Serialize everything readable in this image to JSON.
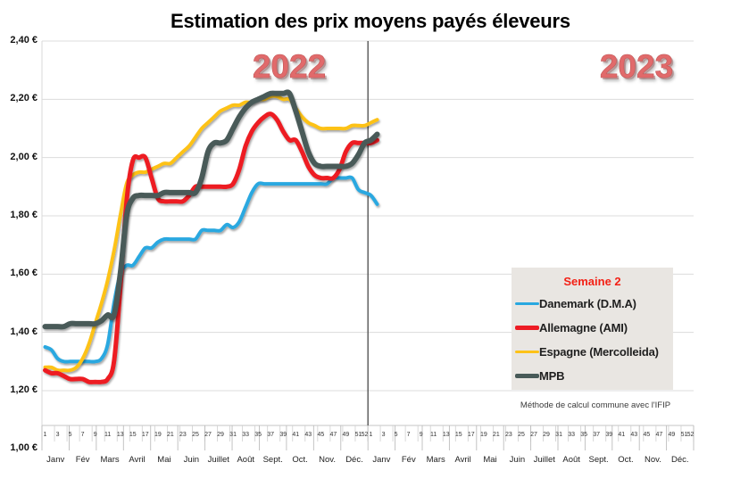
{
  "title": "Estimation des prix moyens payés éleveurs",
  "year_labels": [
    "2022",
    "2023"
  ],
  "footnote": "Méthode de calcul commune avec l'IFIP",
  "legend": {
    "title": "Semaine 2",
    "items": [
      {
        "label": "Danemark (D.M.A)",
        "color": "#29a8e0"
      },
      {
        "label": "Allemagne (AMI)",
        "color": "#ed1c24"
      },
      {
        "label": "Espagne (Mercolleida)",
        "color": "#fdc218"
      },
      {
        "label": "MPB",
        "color": "#485a58"
      }
    ]
  },
  "chart_data": {
    "type": "line",
    "title": "Estimation des prix moyens payés éleveurs",
    "x_axis": {
      "years": [
        "2022",
        "2023"
      ],
      "plotted_range": "2022 semaines 1-52 puis 2023 semaines 1-2",
      "week_tick_labels": [
        "1",
        "3",
        "5",
        "7",
        "9",
        "11",
        "13",
        "15",
        "17",
        "19",
        "21",
        "23",
        "25",
        "27",
        "29",
        "31",
        "33",
        "35",
        "37",
        "39",
        "41",
        "43",
        "45",
        "47",
        "49",
        "51",
        "52"
      ],
      "month_labels": [
        "Janv",
        "Fév",
        "Mars",
        "Avril",
        "Mai",
        "Juin",
        "Juillet",
        "Août",
        "Sept.",
        "Oct.",
        "Nov.",
        "Déc."
      ]
    },
    "y_axis": {
      "unit": "EUR",
      "min": 1.0,
      "max": 2.4,
      "tick_labels": [
        "2,40 €",
        "2,20 €",
        "2,00 €",
        "1,80 €",
        "1,60 €",
        "1,40 €",
        "1,20 €",
        "1,00 €"
      ]
    },
    "divider_between_years": true,
    "highlighted_week": "Semaine 2",
    "series": [
      {
        "name": "Danemark (D.M.A)",
        "color": "#29a8e0",
        "values": [
          1.35,
          1.34,
          1.31,
          1.3,
          1.3,
          1.3,
          1.3,
          1.3,
          1.3,
          1.31,
          1.36,
          1.5,
          1.6,
          1.63,
          1.63,
          1.66,
          1.69,
          1.69,
          1.71,
          1.72,
          1.72,
          1.72,
          1.72,
          1.72,
          1.72,
          1.75,
          1.75,
          1.75,
          1.75,
          1.77,
          1.76,
          1.78,
          1.83,
          1.88,
          1.91,
          1.91,
          1.91,
          1.91,
          1.91,
          1.91,
          1.91,
          1.91,
          1.91,
          1.91,
          1.91,
          1.91,
          1.93,
          1.93,
          1.93,
          1.93,
          1.89,
          1.88,
          1.87,
          1.84
        ]
      },
      {
        "name": "Allemagne (AMI)",
        "color": "#ed1c24",
        "values": [
          1.27,
          1.26,
          1.26,
          1.25,
          1.24,
          1.24,
          1.24,
          1.23,
          1.23,
          1.23,
          1.24,
          1.3,
          1.55,
          1.85,
          1.99,
          2.0,
          2.0,
          1.93,
          1.86,
          1.85,
          1.85,
          1.85,
          1.85,
          1.87,
          1.9,
          1.9,
          1.9,
          1.9,
          1.9,
          1.9,
          1.91,
          1.96,
          2.04,
          2.09,
          2.12,
          2.14,
          2.15,
          2.13,
          2.09,
          2.06,
          2.06,
          2.02,
          1.97,
          1.94,
          1.93,
          1.93,
          1.93,
          1.96,
          2.02,
          2.05,
          2.05,
          2.05,
          2.05,
          2.06
        ]
      },
      {
        "name": "Espagne (Mercolleida)",
        "color": "#fdc218",
        "values": [
          1.28,
          1.28,
          1.27,
          1.27,
          1.27,
          1.28,
          1.31,
          1.36,
          1.43,
          1.5,
          1.58,
          1.68,
          1.8,
          1.91,
          1.94,
          1.95,
          1.95,
          1.96,
          1.97,
          1.98,
          1.98,
          2.0,
          2.02,
          2.04,
          2.07,
          2.1,
          2.12,
          2.14,
          2.16,
          2.17,
          2.18,
          2.18,
          2.19,
          2.19,
          2.2,
          2.2,
          2.21,
          2.21,
          2.2,
          2.2,
          2.17,
          2.14,
          2.12,
          2.11,
          2.1,
          2.1,
          2.1,
          2.1,
          2.1,
          2.11,
          2.11,
          2.11,
          2.12,
          2.13
        ]
      },
      {
        "name": "MPB",
        "color": "#485a58",
        "values": [
          1.42,
          1.42,
          1.42,
          1.42,
          1.43,
          1.43,
          1.43,
          1.43,
          1.43,
          1.44,
          1.46,
          1.46,
          1.6,
          1.8,
          1.86,
          1.87,
          1.87,
          1.87,
          1.87,
          1.88,
          1.88,
          1.88,
          1.88,
          1.88,
          1.88,
          1.93,
          2.02,
          2.05,
          2.05,
          2.06,
          2.1,
          2.14,
          2.17,
          2.19,
          2.2,
          2.21,
          2.22,
          2.22,
          2.22,
          2.22,
          2.16,
          2.09,
          2.02,
          1.98,
          1.97,
          1.97,
          1.97,
          1.97,
          1.97,
          1.98,
          2.01,
          2.05,
          2.06,
          2.08
        ]
      }
    ]
  }
}
